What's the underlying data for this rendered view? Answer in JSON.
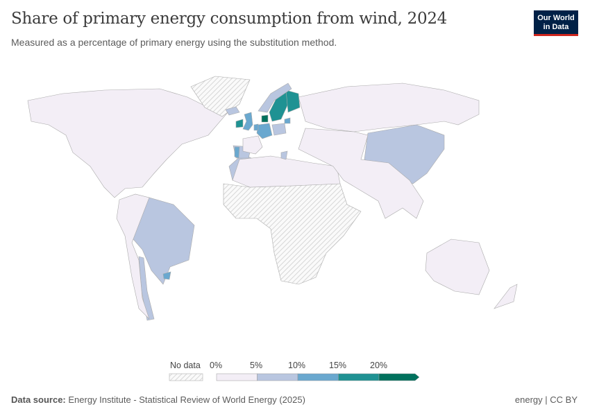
{
  "header": {
    "title": "Share of primary energy consumption from wind, 2024",
    "subtitle": "Measured as a percentage of primary energy using the substitution method.",
    "logo": "Our World in Data"
  },
  "legend": {
    "no_data_label": "No data",
    "ticks": [
      "0%",
      "5%",
      "10%",
      "15%",
      "20%"
    ],
    "bins": [
      {
        "range": "0-5%",
        "color": "#f3eef6"
      },
      {
        "range": "5-10%",
        "color": "#b9c6e0"
      },
      {
        "range": "10-15%",
        "color": "#6aa8cf"
      },
      {
        "range": "15-20%",
        "color": "#1f9293"
      },
      {
        "range": ">20%",
        "color": "#00715d"
      }
    ],
    "no_data_color": "#e0e0e0"
  },
  "regions": [
    {
      "name": "North America",
      "bin": 0
    },
    {
      "name": "Greenland",
      "bin": null
    },
    {
      "name": "Brazil",
      "bin": 1
    },
    {
      "name": "Uruguay",
      "bin": 2
    },
    {
      "name": "Chile",
      "bin": 1
    },
    {
      "name": "South America (other)",
      "bin": 0
    },
    {
      "name": "Africa (most)",
      "bin": null
    },
    {
      "name": "Morocco",
      "bin": 1
    },
    {
      "name": "North Africa",
      "bin": 0
    },
    {
      "name": "Russia",
      "bin": 0
    },
    {
      "name": "China",
      "bin": 1
    },
    {
      "name": "Asia (other)",
      "bin": 0
    },
    {
      "name": "Australia",
      "bin": 0
    },
    {
      "name": "New Zealand",
      "bin": 0
    },
    {
      "name": "Sweden",
      "bin": 3
    },
    {
      "name": "Finland",
      "bin": 3
    },
    {
      "name": "Norway",
      "bin": 1
    },
    {
      "name": "Denmark",
      "bin": 4
    },
    {
      "name": "United Kingdom",
      "bin": 2
    },
    {
      "name": "Ireland",
      "bin": 3
    },
    {
      "name": "Germany",
      "bin": 2
    },
    {
      "name": "Spain",
      "bin": 1
    },
    {
      "name": "Portugal",
      "bin": 2
    },
    {
      "name": "France",
      "bin": 0
    },
    {
      "name": "Poland",
      "bin": 1
    },
    {
      "name": "Greece",
      "bin": 1
    },
    {
      "name": "Netherlands",
      "bin": 2
    },
    {
      "name": "Lithuania",
      "bin": 2
    },
    {
      "name": "Iceland",
      "bin": 1
    }
  ],
  "footer": {
    "source_label": "Data source:",
    "source": "Energy Institute - Statistical Review of World Energy (2025)",
    "license": "energy | CC BY"
  }
}
